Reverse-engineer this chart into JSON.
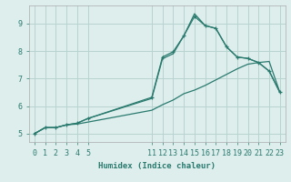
{
  "xlabel": "Humidex (Indice chaleur)",
  "ylabel": "",
  "bg_color": "#ddeeed",
  "grid_color": "#b8d4d0",
  "line_color": "#2a7a6e",
  "ylim": [
    4.7,
    9.65
  ],
  "xlim": [
    -0.5,
    23.5
  ],
  "yticks": [
    5,
    6,
    7,
    8,
    9
  ],
  "xticks": [
    0,
    1,
    2,
    3,
    4,
    5,
    11,
    12,
    13,
    14,
    15,
    16,
    17,
    18,
    19,
    20,
    21,
    22,
    23
  ],
  "line1_x": [
    0,
    1,
    2,
    3,
    4,
    5,
    11,
    12,
    13,
    14,
    15,
    16,
    17,
    18,
    19,
    20,
    21,
    22,
    23
  ],
  "line1_y": [
    5.0,
    5.22,
    5.22,
    5.32,
    5.35,
    5.42,
    5.85,
    6.05,
    6.22,
    6.45,
    6.58,
    6.75,
    6.95,
    7.15,
    7.35,
    7.52,
    7.58,
    7.62,
    6.5
  ],
  "line2_x": [
    0,
    1,
    2,
    3,
    4,
    5,
    11,
    12,
    13,
    14,
    15,
    16,
    17,
    18,
    19,
    20,
    21,
    22,
    23
  ],
  "line2_y": [
    5.0,
    5.22,
    5.22,
    5.32,
    5.38,
    5.55,
    6.32,
    7.78,
    7.97,
    8.55,
    9.25,
    8.92,
    8.82,
    8.15,
    7.78,
    7.73,
    7.58,
    7.27,
    6.5
  ],
  "line3_x": [
    0,
    1,
    2,
    3,
    4,
    5,
    11,
    12,
    13,
    14,
    15,
    16,
    17,
    18,
    19,
    20,
    21,
    22,
    23
  ],
  "line3_y": [
    5.0,
    5.22,
    5.22,
    5.32,
    5.38,
    5.55,
    6.28,
    7.72,
    7.9,
    8.55,
    9.35,
    8.92,
    8.82,
    8.15,
    7.78,
    7.73,
    7.58,
    7.27,
    6.5
  ]
}
